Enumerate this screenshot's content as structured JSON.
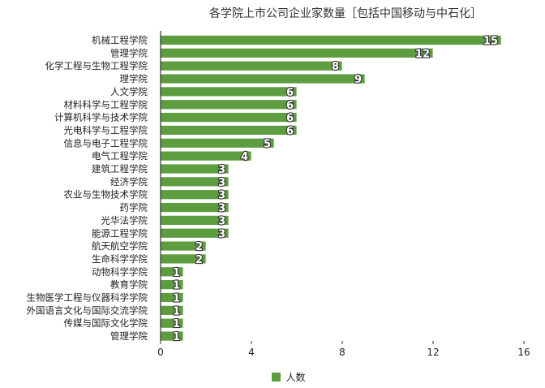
{
  "chart_data": {
    "type": "bar",
    "orientation": "horizontal",
    "title": "各学院上市公司企业家数量［包括中国移动与中石化］",
    "categories": [
      "机械工程学院",
      "管理学院",
      "化学工程与生物工程学院",
      "理学院",
      "人文学院",
      "材料科学与工程学院",
      "计算机科学与技术学院",
      "光电科学与工程学院",
      "信息与电子工程学院",
      "电气工程学院",
      "建筑工程学院",
      "经济学院",
      "农业与生物技术学院",
      "药学院",
      "光华法学院",
      "能源工程学院",
      "航天航空学院",
      "生命科学学院",
      "动物科学学院",
      "教育学院",
      "生物医学工程与仪器科学学院",
      "外国语言文化与国际交流学院",
      "传媒与国际文化学院",
      "管理学院"
    ],
    "series": [
      {
        "name": "人数",
        "values": [
          15,
          12,
          8,
          9,
          6,
          6,
          6,
          6,
          5,
          4,
          3,
          3,
          3,
          3,
          3,
          3,
          2,
          2,
          1,
          1,
          1,
          1,
          1,
          1
        ]
      }
    ],
    "xlim": [
      0,
      16
    ],
    "xticks": [
      "0",
      "4",
      "8",
      "12",
      "16"
    ],
    "grid": false,
    "legend_position": "bottom",
    "colors": {
      "bar": "#5e9c40",
      "bar_edge": "#ffffff",
      "axis": "#333333"
    }
  }
}
